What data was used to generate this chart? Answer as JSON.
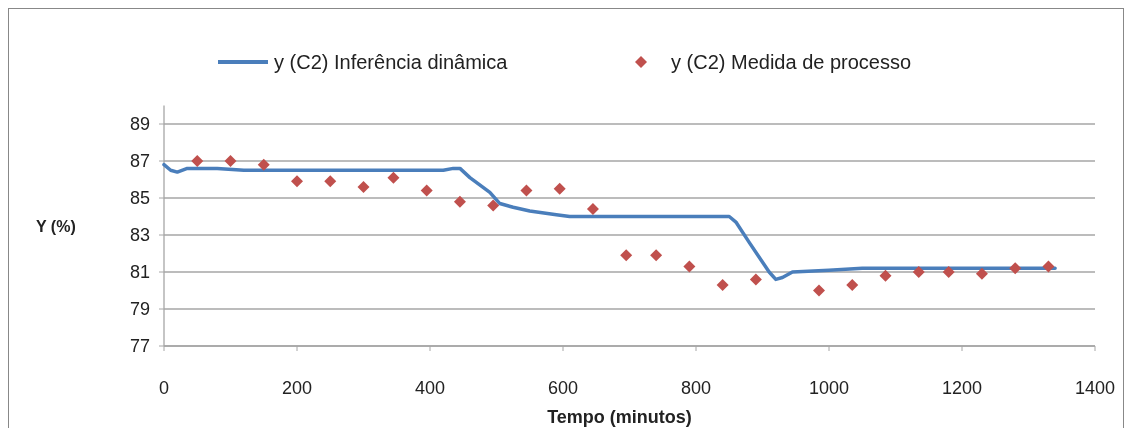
{
  "chart_data": {
    "type": "line",
    "xlabel": "Tempo (minutos)",
    "ylabel": "Y (%)",
    "xlim": [
      0,
      1400
    ],
    "xticks": [
      0,
      200,
      400,
      600,
      800,
      1000,
      1200,
      1400
    ],
    "ylim": [
      77,
      90
    ],
    "yticks": [
      77,
      79,
      81,
      83,
      85,
      87,
      89
    ],
    "grid": "y",
    "legend": "top",
    "series": [
      {
        "name": "y (C2) Inferência dinâmica",
        "color": "#4a7ebb",
        "marker": "none",
        "x": [
          0,
          10,
          20,
          35,
          80,
          120,
          420,
          435,
          445,
          460,
          490,
          505,
          525,
          550,
          590,
          610,
          850,
          860,
          880,
          910,
          920,
          930,
          945,
          1000,
          1050,
          1340
        ],
        "values": [
          86.8,
          86.5,
          86.4,
          86.6,
          86.6,
          86.5,
          86.5,
          86.6,
          86.6,
          86.1,
          85.3,
          84.7,
          84.5,
          84.3,
          84.1,
          84.0,
          84.0,
          83.7,
          82.6,
          81.0,
          80.6,
          80.7,
          81.0,
          81.1,
          81.2,
          81.2
        ]
      },
      {
        "name": "y (C2) Medida de processo",
        "type": "scatter",
        "color": "#c0504d",
        "marker": "diamond",
        "x": [
          50,
          100,
          150,
          200,
          250,
          300,
          345,
          395,
          445,
          495,
          545,
          595,
          645,
          695,
          740,
          790,
          840,
          890,
          985,
          1035,
          1085,
          1135,
          1180,
          1230,
          1280,
          1330
        ],
        "values": [
          87.0,
          87.0,
          86.8,
          85.9,
          85.9,
          85.6,
          86.1,
          85.4,
          84.8,
          84.6,
          85.4,
          85.5,
          84.4,
          81.9,
          81.9,
          81.3,
          80.3,
          80.6,
          80.0,
          80.3,
          80.8,
          81.0,
          81.0,
          80.9,
          81.2,
          81.3
        ]
      }
    ]
  }
}
